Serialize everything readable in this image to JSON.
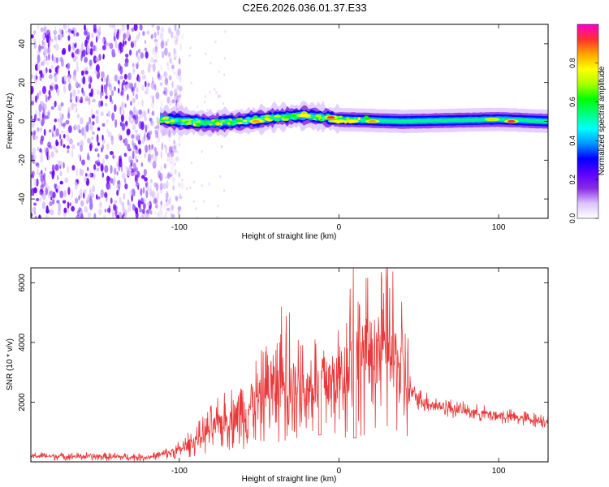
{
  "title": "C2E6.2026.036.01.37.E33",
  "chart_data": [
    {
      "type": "heatmap",
      "name": "spectrogram",
      "xlabel": "Height of straight line (km)",
      "ylabel": "Frequency (Hz)",
      "xlim": [
        -193,
        131
      ],
      "ylim": [
        -50,
        50
      ],
      "xticks": [
        -100,
        0,
        100
      ],
      "yticks": [
        -40,
        -20,
        0,
        20,
        40
      ],
      "colorbar": {
        "label": "Normalized spectral amplitude",
        "range": [
          0,
          1
        ],
        "ticks": [
          0.0,
          0.2,
          0.4,
          0.6,
          0.8
        ],
        "colors": [
          "#ffffff",
          "#dcc4ff",
          "#8a2be2",
          "#5a00ff",
          "#0000ff",
          "#0096ff",
          "#00ffff",
          "#00ff80",
          "#00ff00",
          "#aaff00",
          "#ffff00",
          "#ffa500",
          "#ff3030",
          "#ff00cc"
        ]
      },
      "noise_region_x": [
        -193,
        -110
      ],
      "signal_ridge": [
        {
          "x": -112,
          "y": 1
        },
        {
          "x": -80,
          "y": -1
        },
        {
          "x": -60,
          "y": 0
        },
        {
          "x": -40,
          "y": 2
        },
        {
          "x": -20,
          "y": 3
        },
        {
          "x": 0,
          "y": 1
        },
        {
          "x": 40,
          "y": 0
        },
        {
          "x": 100,
          "y": 1
        },
        {
          "x": 131,
          "y": 0
        }
      ],
      "hotspots": [
        {
          "x": -52,
          "y": 0,
          "level": 0.85
        },
        {
          "x": -22,
          "y": 3,
          "level": 0.8
        },
        {
          "x": -5,
          "y": 2,
          "level": 0.9
        },
        {
          "x": 0,
          "y": 0,
          "level": 0.75
        },
        {
          "x": 8,
          "y": 0,
          "level": 0.8
        },
        {
          "x": 21,
          "y": 0,
          "level": 0.85
        },
        {
          "x": 96,
          "y": 1,
          "level": 0.7
        },
        {
          "x": 108,
          "y": 0,
          "level": 0.9
        }
      ]
    },
    {
      "type": "line",
      "name": "snr",
      "xlabel": "Height of straight line (km)",
      "ylabel": "SNR (10 * v/v)",
      "xlim": [
        -193,
        131
      ],
      "ylim": [
        0,
        6500
      ],
      "xticks": [
        -100,
        0,
        100
      ],
      "yticks": [
        2000,
        4000,
        6000
      ],
      "color": "#e8393a",
      "envelope": [
        {
          "x": -193,
          "y": 200
        },
        {
          "x": -120,
          "y": 150
        },
        {
          "x": -110,
          "y": 250
        },
        {
          "x": -100,
          "y": 400
        },
        {
          "x": -90,
          "y": 700
        },
        {
          "x": -80,
          "y": 1100
        },
        {
          "x": -70,
          "y": 1400
        },
        {
          "x": -60,
          "y": 1700
        },
        {
          "x": -50,
          "y": 2100
        },
        {
          "x": -40,
          "y": 2500
        },
        {
          "x": -30,
          "y": 2600
        },
        {
          "x": -20,
          "y": 2400
        },
        {
          "x": -10,
          "y": 2800
        },
        {
          "x": -5,
          "y": 2500
        },
        {
          "x": 0,
          "y": 2800
        },
        {
          "x": 5,
          "y": 3200
        },
        {
          "x": 10,
          "y": 3400
        },
        {
          "x": 20,
          "y": 3700
        },
        {
          "x": 30,
          "y": 3800
        },
        {
          "x": 35,
          "y": 3600
        },
        {
          "x": 40,
          "y": 3000
        },
        {
          "x": 45,
          "y": 2300
        },
        {
          "x": 50,
          "y": 2100
        },
        {
          "x": 60,
          "y": 1900
        },
        {
          "x": 80,
          "y": 1700
        },
        {
          "x": 100,
          "y": 1550
        },
        {
          "x": 120,
          "y": 1420
        },
        {
          "x": 131,
          "y": 1380
        }
      ],
      "spikes": [
        {
          "x": -36,
          "y": 5200
        },
        {
          "x": -33,
          "y": 4900
        },
        {
          "x": -31,
          "y": 5000
        },
        {
          "x": -46,
          "y": 3700
        },
        {
          "x": -24,
          "y": 3900
        },
        {
          "x": 9,
          "y": 6500
        },
        {
          "x": 7,
          "y": 5800
        }
      ],
      "dips": [
        {
          "x": -12,
          "y": 900
        },
        {
          "x": 10,
          "y": 800
        }
      ]
    }
  ]
}
